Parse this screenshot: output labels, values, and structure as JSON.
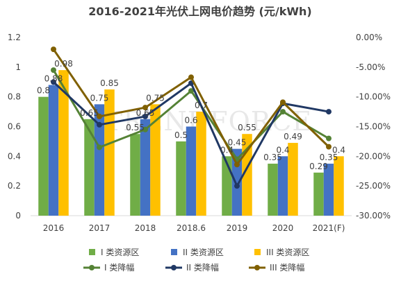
{
  "chart_data": {
    "type": "bar",
    "title": "2016-2021年光伏上网电价趋势 (元/kWh)",
    "watermark": "TRENDFORCE",
    "categories": [
      "2016",
      "2017",
      "2018",
      "2018.6",
      "2019",
      "2020",
      "2021(F)"
    ],
    "y_left": {
      "ylim": [
        0,
        1.2
      ],
      "ticks": [
        "0",
        "0.2",
        "0.4",
        "0.6",
        "0.8",
        "1",
        "1.2"
      ],
      "tick_values": [
        0,
        0.2,
        0.4,
        0.6,
        0.8,
        1,
        1.2
      ]
    },
    "y_right": {
      "ylim": [
        -30,
        0
      ],
      "ticks": [
        "0.00%",
        "-5.00%",
        "-10.00%",
        "-15.00%",
        "-20.00%",
        "-25.00%",
        "-30.00%"
      ],
      "tick_values": [
        0,
        -5,
        -10,
        -15,
        -20,
        -25,
        -30
      ]
    },
    "bar_series": [
      {
        "name": "I 类资源区",
        "color": "#70ad47",
        "values": [
          0.8,
          0.65,
          0.55,
          0.5,
          0.4,
          0.35,
          0.29
        ],
        "labels": [
          "0.8",
          "0.65",
          "0.55",
          "0.5",
          "0.4",
          "0.35",
          "0.29"
        ]
      },
      {
        "name": "II 类资源区",
        "color": "#4472c4",
        "values": [
          0.88,
          0.75,
          0.65,
          0.6,
          0.45,
          0.4,
          0.35
        ],
        "labels": [
          "0.88",
          "0.75",
          "0.65",
          "0.6",
          "0.45",
          "0.4",
          "0.35"
        ]
      },
      {
        "name": "III 类资源区",
        "color": "#ffc000",
        "values": [
          0.98,
          0.85,
          0.75,
          0.7,
          0.55,
          0.49,
          0.4
        ],
        "labels": [
          "0.98",
          "0.85",
          "0.75",
          "0.7",
          "0.55",
          "0.49",
          "0.4"
        ]
      }
    ],
    "line_series": [
      {
        "name": "I 类降幅",
        "color": "#548235",
        "values": [
          -5.5,
          -18.5,
          -15.5,
          -9.0,
          -20.5,
          -12.5,
          -17.0
        ]
      },
      {
        "name": "II 类降幅",
        "color": "#203864",
        "values": [
          -7.5,
          -14.7,
          -13.3,
          -7.7,
          -25.0,
          -11.1,
          -12.5
        ]
      },
      {
        "name": "III 类降幅",
        "color": "#806000",
        "values": [
          -2.0,
          -13.3,
          -11.8,
          -6.7,
          -21.4,
          -10.9,
          -18.4
        ]
      }
    ],
    "legend_position": "bottom",
    "grid": false
  }
}
